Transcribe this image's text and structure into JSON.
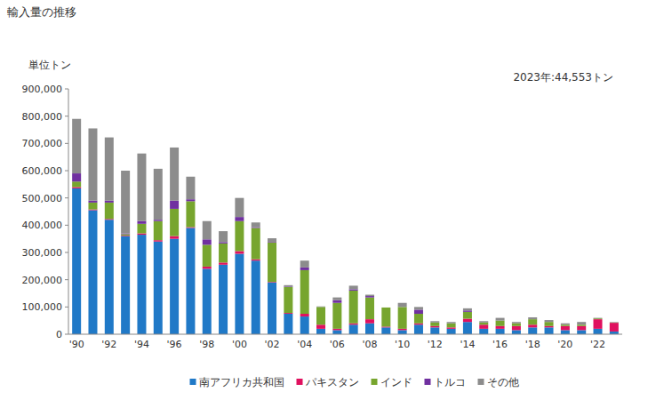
{
  "chart_data": {
    "type": "bar",
    "stacked": true,
    "title": "輸入量の推移",
    "y_label": "単位トン",
    "annotation": "2023年:44,553トン",
    "grid": false,
    "legend": "bottom",
    "categories": [
      "'90",
      null,
      "'92",
      null,
      "'94",
      null,
      "'96",
      null,
      "'98",
      null,
      "'00",
      null,
      "'02",
      null,
      "'04",
      null,
      "'06",
      null,
      "'08",
      null,
      "'10",
      null,
      "'12",
      null,
      "'14",
      null,
      "'16",
      null,
      "'18",
      null,
      "'20",
      null,
      "'22",
      null
    ],
    "ylim": [
      0,
      900000
    ],
    "yticks": [
      0,
      {
        "value": 100000,
        "label": "100,000"
      },
      {
        "value": 200000,
        "label": "200,000"
      },
      {
        "value": 300000,
        "label": "300,000"
      },
      {
        "value": 400000,
        "label": "400,000"
      },
      {
        "value": 500000,
        "label": "500,000"
      },
      {
        "value": 600000,
        "label": "600,000"
      },
      {
        "value": 700000,
        "label": "700,000"
      },
      {
        "value": 800000,
        "label": "800,000"
      },
      {
        "value": 900000,
        "label": "900,000"
      }
    ],
    "series": [
      {
        "name": "南アフリカ共和国",
        "color": "#2079c7",
        "values": [
          535000,
          455000,
          420000,
          360000,
          365000,
          340000,
          350000,
          390000,
          240000,
          255000,
          295000,
          270000,
          190000,
          75000,
          65000,
          20000,
          15000,
          35000,
          40000,
          25000,
          15000,
          35000,
          25000,
          20000,
          45000,
          20000,
          20000,
          15000,
          25000,
          25000,
          15000,
          15000,
          20000,
          10000
        ]
      },
      {
        "name": "パキスタン",
        "color": "#e0115f",
        "values": [
          5000,
          3000,
          3000,
          2000,
          5000,
          5000,
          10000,
          3000,
          8000,
          8000,
          10000,
          5000,
          2000,
          3000,
          10000,
          15000,
          5000,
          5000,
          15000,
          3000,
          5000,
          5000,
          5000,
          5000,
          12000,
          15000,
          10000,
          15000,
          10000,
          5000,
          15000,
          15000,
          35000,
          32000
        ]
      },
      {
        "name": "インド",
        "color": "#77a52e",
        "values": [
          20000,
          25000,
          60000,
          5000,
          35000,
          70000,
          100000,
          95000,
          80000,
          70000,
          110000,
          115000,
          145000,
          95000,
          160000,
          65000,
          95000,
          120000,
          80000,
          70000,
          80000,
          35000,
          13000,
          15000,
          25000,
          8000,
          20000,
          10000,
          20000,
          15000,
          5000,
          5000,
          3000,
          1000
        ]
      },
      {
        "name": "トルコ",
        "color": "#7030a0",
        "values": [
          30000,
          7000,
          7000,
          3000,
          10000,
          5000,
          30000,
          7000,
          20000,
          5000,
          15000,
          3000,
          2000,
          2000,
          10000,
          0,
          10000,
          5000,
          5000,
          0,
          0,
          15000,
          0,
          0,
          5000,
          0,
          0,
          0,
          0,
          0,
          0,
          0,
          0,
          0
        ]
      },
      {
        "name": "その他",
        "color": "#8c8c8c",
        "values": [
          200000,
          265000,
          232000,
          230000,
          248000,
          187000,
          195000,
          83000,
          67000,
          40000,
          70000,
          17000,
          13000,
          5000,
          25000,
          2000,
          10000,
          13000,
          5000,
          0,
          15000,
          10000,
          5000,
          5000,
          8000,
          5000,
          10000,
          5000,
          7000,
          7000,
          5000,
          10000,
          2000,
          1553
        ]
      }
    ]
  }
}
